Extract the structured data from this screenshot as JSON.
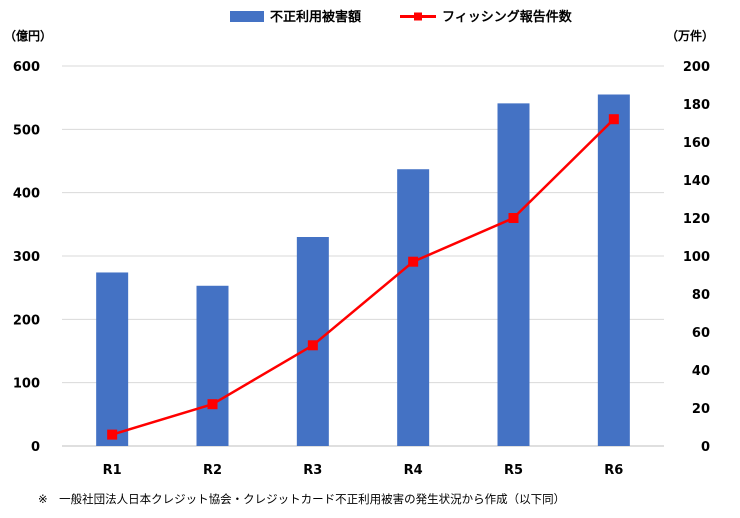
{
  "chart_data": {
    "type": "bar",
    "categories": [
      "R1",
      "R2",
      "R3",
      "R4",
      "R5",
      "R6"
    ],
    "series": [
      {
        "name": "不正利用被害額",
        "type": "bar",
        "axis": "left",
        "color": "#4472C4",
        "values": [
          274,
          253,
          330,
          437,
          541,
          555
        ]
      },
      {
        "name": "フィッシング報告件数",
        "type": "line",
        "axis": "right",
        "color": "#FF0000",
        "values": [
          6,
          22,
          53,
          97,
          120,
          172
        ]
      }
    ],
    "y_left": {
      "unit_label": "（億円）",
      "lim": [
        0,
        600
      ],
      "ticks": [
        "0",
        "100",
        "200",
        "300",
        "400",
        "500",
        "600"
      ]
    },
    "y_right": {
      "unit_label": "（万件）",
      "lim": [
        0,
        200
      ],
      "ticks": [
        "0",
        "20",
        "40",
        "60",
        "80",
        "100",
        "120",
        "140",
        "160",
        "180",
        "200"
      ]
    },
    "grid": true,
    "legend_position": "top",
    "footnote": "※　一般社団法人日本クレジット協会・クレジットカード不正利用被害の発生状況から作成（以下同）"
  }
}
